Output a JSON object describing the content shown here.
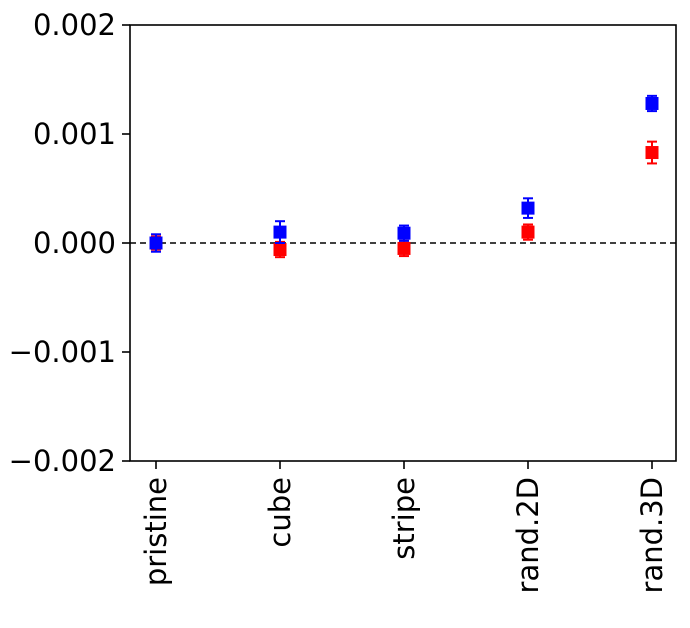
{
  "chart_data": {
    "type": "scatter",
    "title": "",
    "xlabel": "",
    "ylabel": "",
    "categories": [
      "pristine",
      "cube",
      "stripe",
      "rand.2D",
      "rand.3D"
    ],
    "ylim": [
      -0.002,
      0.002
    ],
    "yticks": [
      0.002,
      0.001,
      0.0,
      -0.001,
      -0.002
    ],
    "ytick_labels": [
      "0.002",
      "0.001",
      "0.000",
      "−0.001",
      "−0.002"
    ],
    "reference_line": {
      "y": 0.0,
      "style": "dashed",
      "color": "#000000"
    },
    "grid": false,
    "legend": "none",
    "series": [
      {
        "color": "#ff0000",
        "values": [
          0.0,
          -6e-05,
          -5e-05,
          0.0001,
          0.00083
        ],
        "errors": [
          6e-05,
          7e-05,
          7e-05,
          7e-05,
          0.0001
        ]
      },
      {
        "color": "#0000ff",
        "values": [
          0.0,
          0.0001,
          9e-05,
          0.00032,
          0.00128
        ],
        "errors": [
          8e-05,
          0.0001,
          7e-05,
          9e-05,
          7e-05
        ]
      }
    ]
  }
}
